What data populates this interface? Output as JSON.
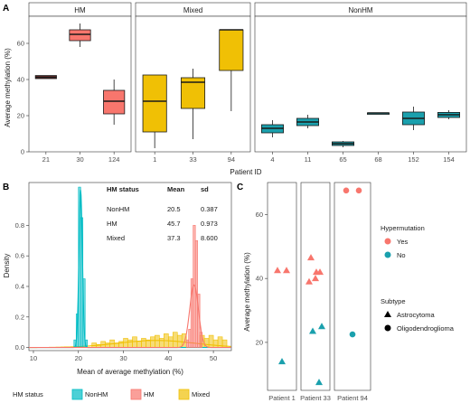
{
  "panel_labels": {
    "a": "A",
    "b": "B",
    "c": "C"
  },
  "chart_data": [
    {
      "type": "box",
      "panel": "A",
      "ylabel": "Average methylation (%)",
      "xlabel": "Patient ID",
      "ylim": [
        0,
        75
      ],
      "yticks": [
        0,
        20,
        40,
        60
      ],
      "facets": [
        {
          "name": "HM",
          "color": "#f8766d",
          "boxes": [
            {
              "patient": "21",
              "min": 40.5,
              "q1": 40.5,
              "median": 41.3,
              "q3": 42.2,
              "max": 42.2,
              "color": "#7a2f2a"
            },
            {
              "patient": "30",
              "min": 58,
              "q1": 61.5,
              "median": 65,
              "q3": 67.5,
              "max": 71,
              "color": "#f8766d"
            },
            {
              "patient": "124",
              "min": 15,
              "q1": 21,
              "median": 28,
              "q3": 34,
              "max": 40,
              "color": "#f8766d"
            }
          ]
        },
        {
          "name": "Mixed",
          "color": "#f0c005",
          "boxes": [
            {
              "patient": "1",
              "min": 2,
              "q1": 11,
              "median": 28,
              "q3": 42.5,
              "max": 42.5,
              "color": "#f0c005"
            },
            {
              "patient": "33",
              "min": 7,
              "q1": 24,
              "median": 38.5,
              "q3": 41,
              "max": 46,
              "color": "#f0c005"
            },
            {
              "patient": "94",
              "min": 22.5,
              "q1": 45,
              "median": 67.5,
              "q3": 67.5,
              "max": 67.5,
              "color": "#f0c005"
            }
          ]
        },
        {
          "name": "NonHM",
          "color": "#00bcc4",
          "boxes": [
            {
              "patient": "4",
              "min": 8,
              "q1": 10.5,
              "median": 13,
              "q3": 15,
              "max": 17.5,
              "color": "#1aa0ad"
            },
            {
              "patient": "11",
              "min": 13,
              "q1": 14.5,
              "median": 16.5,
              "q3": 18.5,
              "max": 20.5,
              "color": "#1aa0ad"
            },
            {
              "patient": "65",
              "min": 2.5,
              "q1": 3.5,
              "median": 4.5,
              "q3": 5.5,
              "max": 6,
              "color": "#1aa0ad"
            },
            {
              "patient": "68",
              "min": 21.5,
              "q1": 21.5,
              "median": 21.5,
              "q3": 21.5,
              "max": 21.5,
              "color": "#1aa0ad"
            },
            {
              "patient": "152",
              "min": 12,
              "q1": 15,
              "median": 18.5,
              "q3": 22,
              "max": 25,
              "color": "#1aa0ad"
            },
            {
              "patient": "154",
              "min": 18,
              "q1": 19,
              "median": 20.5,
              "q3": 21.8,
              "max": 23,
              "color": "#1aa0ad"
            }
          ]
        }
      ]
    },
    {
      "type": "histogram",
      "panel": "B",
      "xlabel": "Mean of average methylation (%)",
      "ylabel": "Density",
      "xlim": [
        9,
        54
      ],
      "ylim": [
        -0.02,
        1.08
      ],
      "xticks": [
        10,
        20,
        30,
        40,
        50
      ],
      "yticks": [
        0.0,
        0.2,
        0.4,
        0.6,
        0.8
      ],
      "binwidth": 0.5,
      "series": [
        {
          "name": "NonHM",
          "color": "#00bcc4",
          "mean": 20.5,
          "sd": 0.387,
          "bins": [
            [
              19.0,
              0.05
            ],
            [
              19.5,
              0.22
            ],
            [
              20.0,
              1.05
            ],
            [
              20.5,
              0.85
            ],
            [
              21.0,
              0.45
            ],
            [
              21.5,
              0.05
            ]
          ]
        },
        {
          "name": "HM",
          "color": "#f8766d",
          "mean": 45.7,
          "sd": 0.973,
          "bins": [
            [
              44.0,
              0.05
            ],
            [
              44.5,
              0.12
            ],
            [
              45.0,
              0.45
            ],
            [
              45.5,
              0.8
            ],
            [
              46.0,
              0.7
            ],
            [
              46.5,
              0.35
            ],
            [
              47.0,
              0.1
            ]
          ]
        },
        {
          "name": "Mixed",
          "color": "#f0c005",
          "mean": 37.3,
          "sd": 8.6,
          "bins": [
            [
              23,
              0.03
            ],
            [
              24,
              0.02
            ],
            [
              25,
              0.04
            ],
            [
              26,
              0.03
            ],
            [
              27,
              0.05
            ],
            [
              28,
              0.03
            ],
            [
              29,
              0.04
            ],
            [
              30,
              0.06
            ],
            [
              31,
              0.05
            ],
            [
              32,
              0.07
            ],
            [
              33,
              0.04
            ],
            [
              34,
              0.06
            ],
            [
              35,
              0.05
            ],
            [
              36,
              0.07
            ],
            [
              37,
              0.08
            ],
            [
              38,
              0.06
            ],
            [
              39,
              0.09
            ],
            [
              40,
              0.07
            ],
            [
              41,
              0.1
            ],
            [
              42,
              0.08
            ],
            [
              43,
              0.09
            ],
            [
              47,
              0.08
            ],
            [
              48,
              0.06
            ],
            [
              49,
              0.08
            ],
            [
              50,
              0.05
            ],
            [
              51,
              0.07
            ],
            [
              52,
              0.05
            ]
          ]
        }
      ],
      "table": {
        "headers": [
          "HM status",
          "Mean",
          "sd"
        ],
        "rows": [
          [
            "NonHM",
            "20.5",
            "0.387"
          ],
          [
            "HM",
            "45.7",
            "0.973"
          ],
          [
            "Mixed",
            "37.3",
            "8.600"
          ]
        ]
      },
      "legend_title": "HM status",
      "legend_position": "bottom"
    },
    {
      "type": "scatter",
      "panel": "C",
      "ylabel": "Average methylation (%)",
      "ylim": [
        5,
        70
      ],
      "yticks": [
        20,
        40,
        60
      ],
      "facets": [
        {
          "name": "Patient 1",
          "points": [
            {
              "y": 42.5,
              "hyper": "Yes",
              "subtype": "Astrocytoma"
            },
            {
              "y": 42.5,
              "hyper": "Yes",
              "subtype": "Astrocytoma"
            },
            {
              "y": 14,
              "hyper": "No",
              "subtype": "Astrocytoma"
            }
          ]
        },
        {
          "name": "Patient 33",
          "points": [
            {
              "y": 46.5,
              "hyper": "Yes",
              "subtype": "Astrocytoma"
            },
            {
              "y": 42,
              "hyper": "Yes",
              "subtype": "Astrocytoma"
            },
            {
              "y": 40,
              "hyper": "Yes",
              "subtype": "Astrocytoma"
            },
            {
              "y": 39,
              "hyper": "Yes",
              "subtype": "Astrocytoma"
            },
            {
              "y": 42,
              "hyper": "Yes",
              "subtype": "Astrocytoma"
            },
            {
              "y": 25,
              "hyper": "No",
              "subtype": "Astrocytoma"
            },
            {
              "y": 23.5,
              "hyper": "No",
              "subtype": "Astrocytoma"
            },
            {
              "y": 7.5,
              "hyper": "No",
              "subtype": "Astrocytoma"
            }
          ]
        },
        {
          "name": "Patient 94",
          "points": [
            {
              "y": 67.5,
              "hyper": "Yes",
              "subtype": "Oligodendroglioma"
            },
            {
              "y": 67.5,
              "hyper": "Yes",
              "subtype": "Oligodendroglioma"
            },
            {
              "y": 22.5,
              "hyper": "No",
              "subtype": "Oligodendroglioma"
            }
          ]
        }
      ],
      "legend": {
        "hyper_title": "Hypermutation",
        "hyper_items": [
          {
            "label": "Yes",
            "color": "#f8766d"
          },
          {
            "label": "No",
            "color": "#1aa0ad"
          }
        ],
        "subtype_title": "Subtype",
        "subtype_items": [
          {
            "label": "Astrocytoma",
            "shape": "triangle"
          },
          {
            "label": "Oligodendroglioma",
            "shape": "circle"
          }
        ]
      }
    }
  ]
}
